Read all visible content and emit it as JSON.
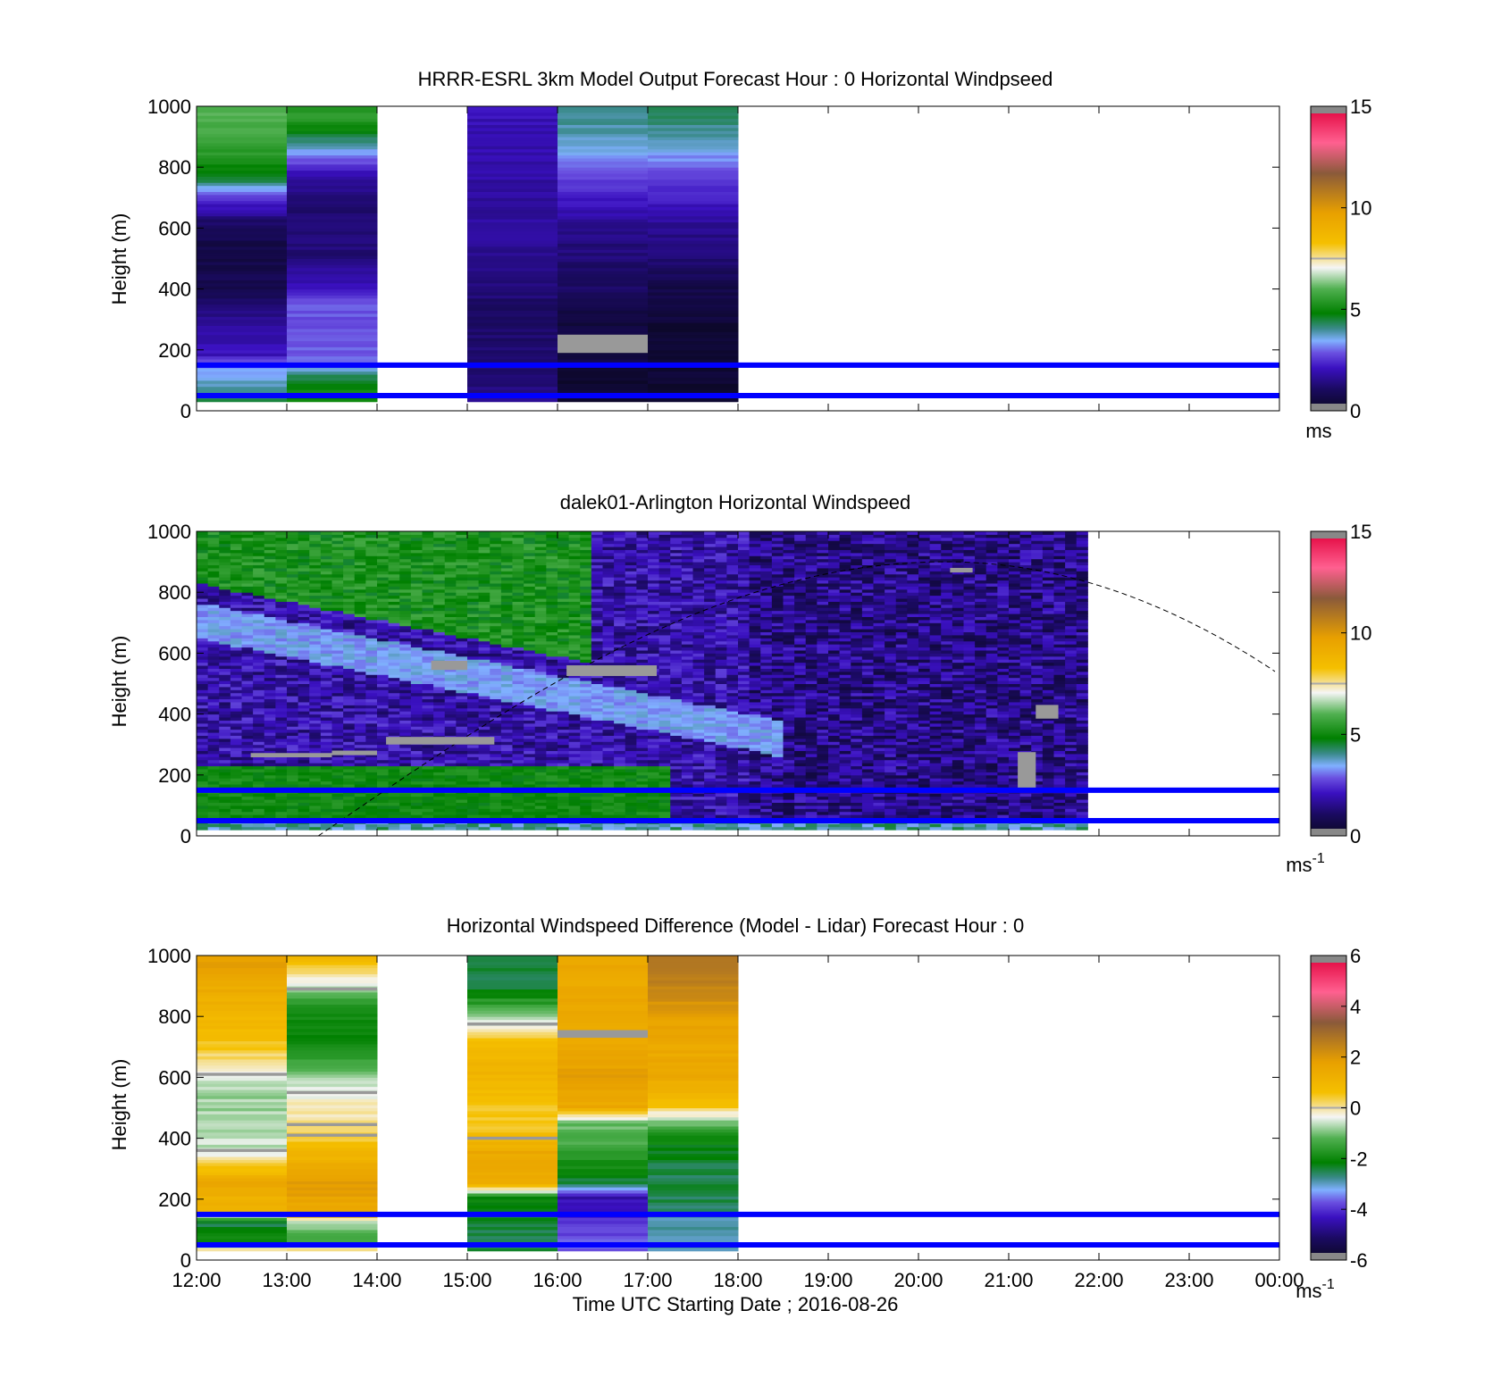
{
  "chart_data": [
    {
      "type": "heatmap",
      "title": "HRRR-ESRL 3km Model Output   Forecast Hour : 0 Horizontal Windpseed",
      "ylabel": "Height (m)",
      "xlabel": "",
      "x_ticks": [
        "12:00",
        "13:00",
        "14:00",
        "15:00",
        "16:00",
        "17:00",
        "18:00",
        "19:00",
        "20:00",
        "21:00",
        "22:00",
        "23:00",
        "00:00"
      ],
      "ylim": [
        0,
        1000
      ],
      "y_ticks": [
        "0",
        "200",
        "400",
        "600",
        "800",
        "1000"
      ],
      "colorbar": {
        "ticks": [
          "0",
          "5",
          "10",
          "15"
        ],
        "range": [
          0,
          15
        ],
        "unit": "ms",
        "scale": "speed"
      },
      "reference_lines_m": [
        50,
        150
      ],
      "data_columns_hours": [
        {
          "start": 12,
          "end": 13,
          "profile": [
            [
              0,
              5.0
            ],
            [
              60,
              4.0
            ],
            [
              100,
              3.5
            ],
            [
              150,
              3.0
            ],
            [
              180,
              2.0
            ],
            [
              300,
              1.5
            ],
            [
              400,
              0.8
            ],
            [
              500,
              0.6
            ],
            [
              600,
              0.8
            ],
            [
              680,
              2.2
            ],
            [
              760,
              4.5
            ],
            [
              850,
              5.5
            ],
            [
              950,
              6.0
            ],
            [
              1000,
              6.0
            ]
          ]
        },
        {
          "start": 13,
          "end": 14,
          "profile": [
            [
              0,
              5.0
            ],
            [
              60,
              5.0
            ],
            [
              120,
              4.0
            ],
            [
              160,
              3.0
            ],
            [
              250,
              2.8
            ],
            [
              350,
              2.8
            ],
            [
              400,
              2.0
            ],
            [
              500,
              1.2
            ],
            [
              600,
              1.2
            ],
            [
              700,
              1.2
            ],
            [
              780,
              2.0
            ],
            [
              850,
              3.5
            ],
            [
              950,
              5.5
            ],
            [
              1000,
              5.5
            ]
          ]
        },
        {
          "start": 15,
          "end": 16,
          "profile": [
            [
              0,
              1.5
            ],
            [
              100,
              1.2
            ],
            [
              200,
              1.2
            ],
            [
              300,
              1.0
            ],
            [
              400,
              1.2
            ],
            [
              500,
              1.5
            ],
            [
              600,
              1.6
            ],
            [
              700,
              1.6
            ],
            [
              800,
              1.8
            ],
            [
              900,
              1.8
            ],
            [
              1000,
              2.0
            ]
          ]
        },
        {
          "start": 16,
          "end": 17,
          "profile": [
            [
              0,
              0.3
            ],
            [
              100,
              0.3
            ],
            [
              150,
              0.5
            ],
            [
              200,
              0.5
            ],
            [
              290,
              0.5
            ],
            [
              350,
              0.8
            ],
            [
              400,
              1.0
            ],
            [
              500,
              1.2
            ],
            [
              600,
              1.4
            ],
            [
              700,
              2.2
            ],
            [
              800,
              3.0
            ],
            [
              900,
              3.8
            ],
            [
              1000,
              4.0
            ]
          ]
        },
        {
          "start": 17,
          "end": 18,
          "profile": [
            [
              0,
              0.3
            ],
            [
              100,
              0.3
            ],
            [
              200,
              0.3
            ],
            [
              300,
              0.4
            ],
            [
              400,
              0.6
            ],
            [
              500,
              1.2
            ],
            [
              600,
              1.5
            ],
            [
              700,
              2.2
            ],
            [
              800,
              3.0
            ],
            [
              900,
              3.8
            ],
            [
              1000,
              4.5
            ]
          ]
        }
      ],
      "missing_flags": [
        {
          "start": 16,
          "end": 17,
          "bottom": 190,
          "top": 250
        }
      ]
    },
    {
      "type": "heatmap",
      "title": "dalek01-Arlington  Horizontal Windspeed",
      "ylabel": "Height (m)",
      "xlabel": "",
      "x_ticks": [
        "12:00",
        "13:00",
        "14:00",
        "15:00",
        "16:00",
        "17:00",
        "18:00",
        "19:00",
        "20:00",
        "21:00",
        "22:00",
        "23:00",
        "00:00"
      ],
      "ylim": [
        0,
        1000
      ],
      "y_ticks": [
        "0",
        "200",
        "400",
        "600",
        "800",
        "1000"
      ],
      "colorbar": {
        "ticks": [
          "0",
          "5",
          "10",
          "15"
        ],
        "range": [
          0,
          15
        ],
        "unit": "ms",
        "unit_exp": "-1",
        "scale": "speed"
      },
      "reference_lines_m": [
        50,
        150
      ],
      "data_extent_hours": [
        12,
        21.85
      ],
      "boundary_layer_curve": {
        "start_hour": 13.35,
        "peak_hour": 20.3,
        "peak_height_m": 900,
        "end_height_m": 530
      },
      "missing_flags": [
        {
          "start": 12.6,
          "end": 13.5,
          "bottom": 258,
          "top": 272
        },
        {
          "start": 13.5,
          "end": 14.0,
          "bottom": 265,
          "top": 280
        },
        {
          "start": 14.1,
          "end": 15.3,
          "bottom": 300,
          "top": 325
        },
        {
          "start": 14.6,
          "end": 15.0,
          "bottom": 545,
          "top": 575
        },
        {
          "start": 16.1,
          "end": 17.1,
          "bottom": 525,
          "top": 560
        },
        {
          "start": 21.1,
          "end": 21.3,
          "bottom": 150,
          "top": 275
        },
        {
          "start": 21.3,
          "end": 21.55,
          "bottom": 385,
          "top": 430
        },
        {
          "start": 20.35,
          "end": 20.6,
          "bottom": 865,
          "top": 880
        }
      ]
    },
    {
      "type": "heatmap",
      "title": "Horizontal Windspeed Difference (Model - Lidar) Forecast Hour : 0",
      "ylabel": "Height (m)",
      "xlabel": "Time UTC  Starting Date ; 2016-08-26",
      "x_ticks": [
        "12:00",
        "13:00",
        "14:00",
        "15:00",
        "16:00",
        "17:00",
        "18:00",
        "19:00",
        "20:00",
        "21:00",
        "22:00",
        "23:00",
        "00:00"
      ],
      "ylim": [
        0,
        1000
      ],
      "y_ticks": [
        "0",
        "200",
        "400",
        "600",
        "800",
        "1000"
      ],
      "colorbar": {
        "ticks": [
          "-6",
          "-4",
          "-2",
          "0",
          "2",
          "4",
          "6"
        ],
        "range": [
          -6,
          6
        ],
        "unit": "ms",
        "unit_exp": "-1",
        "scale": "diff"
      },
      "reference_lines_m": [
        50,
        150
      ],
      "data_columns_hours": [
        {
          "start": 12,
          "end": 13,
          "profile": [
            [
              0,
              2.0
            ],
            [
              60,
              -2.0
            ],
            [
              120,
              -2.5
            ],
            [
              160,
              1.0
            ],
            [
              250,
              1.5
            ],
            [
              350,
              -0.6
            ],
            [
              450,
              -0.8
            ],
            [
              550,
              -0.8
            ],
            [
              620,
              -0.3
            ],
            [
              700,
              0.5
            ],
            [
              800,
              1.0
            ],
            [
              900,
              1.5
            ],
            [
              1000,
              2.0
            ]
          ]
        },
        {
          "start": 13,
          "end": 14,
          "profile": [
            [
              0,
              1.5
            ],
            [
              60,
              -1.5
            ],
            [
              120,
              -0.8
            ],
            [
              160,
              1.5
            ],
            [
              250,
              2.0
            ],
            [
              300,
              1.5
            ],
            [
              400,
              0.3
            ],
            [
              500,
              -0.2
            ],
            [
              600,
              -0.8
            ],
            [
              700,
              -2.0
            ],
            [
              800,
              -2.0
            ],
            [
              880,
              -1.0
            ],
            [
              950,
              0.3
            ],
            [
              1000,
              1.0
            ]
          ]
        },
        {
          "start": 15,
          "end": 16,
          "profile": [
            [
              0,
              -2.5
            ],
            [
              100,
              -2.5
            ],
            [
              200,
              -2.0
            ],
            [
              250,
              1.5
            ],
            [
              350,
              1.5
            ],
            [
              420,
              0.5
            ],
            [
              500,
              0.5
            ],
            [
              600,
              1.0
            ],
            [
              700,
              0.8
            ],
            [
              800,
              -1.0
            ],
            [
              900,
              -2.5
            ],
            [
              1000,
              -2.5
            ]
          ]
        },
        {
          "start": 16,
          "end": 17,
          "profile": [
            [
              0,
              -3.5
            ],
            [
              100,
              -4.0
            ],
            [
              200,
              -4.5
            ],
            [
              250,
              -2.5
            ],
            [
              350,
              -1.5
            ],
            [
              450,
              -1.0
            ],
            [
              500,
              1.5
            ],
            [
              600,
              1.8
            ],
            [
              700,
              1.5
            ],
            [
              800,
              1.5
            ],
            [
              900,
              1.5
            ],
            [
              1000,
              1.5
            ]
          ]
        },
        {
          "start": 17,
          "end": 18,
          "profile": [
            [
              0,
              -3.0
            ],
            [
              100,
              -3.0
            ],
            [
              200,
              -2.5
            ],
            [
              300,
              -2.5
            ],
            [
              400,
              -2.0
            ],
            [
              450,
              -1.0
            ],
            [
              500,
              0.5
            ],
            [
              600,
              1.5
            ],
            [
              700,
              1.5
            ],
            [
              800,
              1.8
            ],
            [
              900,
              2.5
            ],
            [
              1000,
              3.0
            ]
          ]
        }
      ],
      "missing_flags": [
        {
          "start": 12,
          "end": 13,
          "bottom": 605,
          "top": 615
        },
        {
          "start": 12,
          "end": 13,
          "bottom": 355,
          "top": 365
        },
        {
          "start": 13,
          "end": 14,
          "bottom": 885,
          "top": 895
        },
        {
          "start": 13,
          "end": 14,
          "bottom": 545,
          "top": 555
        },
        {
          "start": 13,
          "end": 14,
          "bottom": 440,
          "top": 450
        },
        {
          "start": 13,
          "end": 14,
          "bottom": 405,
          "top": 415
        },
        {
          "start": 15,
          "end": 16,
          "bottom": 770,
          "top": 780
        },
        {
          "start": 15,
          "end": 16,
          "bottom": 395,
          "top": 405
        },
        {
          "start": 16,
          "end": 17,
          "bottom": 730,
          "top": 755
        }
      ]
    }
  ]
}
